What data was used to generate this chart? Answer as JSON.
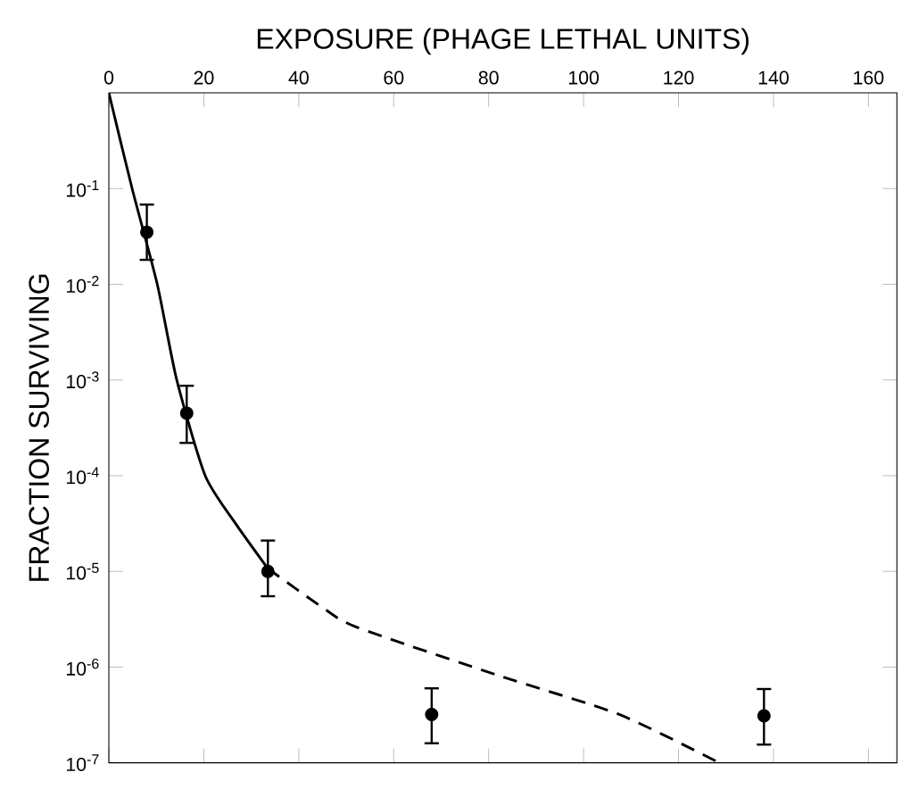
{
  "chart_data": {
    "type": "scatter",
    "xlabel": "EXPOSURE (PHAGE LETHAL UNITS)",
    "ylabel": "FRACTION SURVIVING",
    "xlim": [
      0,
      166
    ],
    "ylim": [
      1e-07,
      1
    ],
    "log": "y",
    "xticks": [
      0,
      20,
      40,
      60,
      80,
      100,
      120,
      140,
      160
    ],
    "yticks": [
      {
        "value": 1e-07,
        "label": "10$^{-7}$"
      },
      {
        "value": 1e-06,
        "label": "10$^{-6}$"
      },
      {
        "value": 1e-05,
        "label": "10$^{-5}$"
      },
      {
        "value": 0.0001,
        "label": "10$^{-4}$"
      },
      {
        "value": 0.001,
        "label": "10$^{-3}$"
      },
      {
        "value": 0.01,
        "label": "10$^{-2}$"
      },
      {
        "value": 0.1,
        "label": "10$^{-1}$"
      }
    ],
    "grid": false,
    "series": [
      {
        "color": "#000000",
        "x": [
          8,
          16.4,
          33.5,
          68,
          138
        ],
        "values": [
          0.035,
          0.00045,
          1e-05,
          3.2e-07,
          3.1e-07
        ],
        "errors": [
          [
            0.018,
            0.068
          ],
          [
            0.00022,
            0.00087
          ],
          [
            5.5e-06,
            2.1e-05
          ],
          [
            1.6e-07,
            6e-07
          ],
          [
            1.55e-07,
            5.9e-07
          ]
        ]
      },
      {
        "type": "line",
        "color": "#000000",
        "line_style": "solid",
        "x": [
          0,
          4.9,
          10.2,
          14.3,
          20.3,
          26.7,
          33.5
        ],
        "values": [
          1,
          0.1,
          0.01,
          0.001,
          0.0001,
          3.16e-05,
          1.07e-05
        ]
      },
      {
        "type": "line",
        "color": "#000000",
        "line_style": "dashed",
        "x": [
          33.5,
          44.7,
          52.3,
          82.3,
          107.5,
          128.6
        ],
        "values": [
          1.07e-05,
          4.3e-06,
          2.6e-06,
          8.1e-07,
          3.2e-07,
          1e-07
        ]
      }
    ]
  }
}
